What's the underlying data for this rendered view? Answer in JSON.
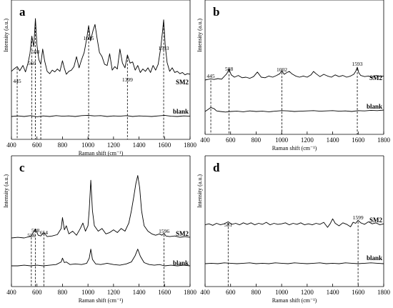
{
  "chart_data": [
    {
      "type": "line",
      "panel_letter": "a",
      "xlabel": "Raman shift (cm⁻¹)",
      "ylabel": "Intensity (a.u.)",
      "xlim": [
        400,
        1800
      ],
      "xticks": [
        400,
        600,
        800,
        1000,
        1200,
        1400,
        1600,
        1800
      ],
      "peak_labels": [
        445,
        560,
        588,
        1005,
        1309,
        1593
      ],
      "dashed_markers": [
        445,
        560,
        588,
        630,
        1005,
        1309,
        1593
      ],
      "series": [
        {
          "name": "SM2",
          "x": [
            400,
            420,
            445,
            465,
            490,
            510,
            530,
            545,
            560,
            575,
            588,
            600,
            615,
            630,
            645,
            660,
            680,
            700,
            720,
            740,
            760,
            780,
            800,
            815,
            830,
            850,
            870,
            890,
            910,
            930,
            950,
            970,
            990,
            1005,
            1020,
            1040,
            1055,
            1070,
            1090,
            1110,
            1130,
            1150,
            1170,
            1190,
            1210,
            1230,
            1250,
            1270,
            1290,
            1309,
            1330,
            1350,
            1370,
            1390,
            1410,
            1430,
            1450,
            1470,
            1490,
            1510,
            1530,
            1550,
            1570,
            1585,
            1593,
            1605,
            1620,
            1640,
            1660,
            1680,
            1700,
            1720,
            1740,
            1760,
            1780,
            1800
          ],
          "y": [
            0.1,
            0.14,
            0.18,
            0.11,
            0.2,
            0.09,
            0.24,
            0.4,
            0.7,
            0.52,
            1.0,
            0.55,
            0.3,
            0.22,
            0.48,
            0.28,
            0.1,
            0.06,
            0.12,
            0.09,
            0.14,
            0.1,
            0.28,
            0.15,
            0.05,
            0.1,
            0.12,
            0.18,
            0.35,
            0.16,
            0.3,
            0.42,
            0.66,
            0.88,
            0.62,
            0.8,
            0.9,
            0.68,
            0.42,
            0.35,
            0.22,
            0.2,
            0.4,
            0.12,
            0.18,
            0.14,
            0.48,
            0.24,
            0.16,
            0.38,
            0.24,
            0.26,
            0.12,
            0.2,
            0.08,
            0.14,
            0.1,
            0.16,
            0.08,
            0.2,
            0.12,
            0.22,
            0.5,
            0.8,
            0.98,
            0.55,
            0.25,
            0.1,
            0.16,
            0.08,
            0.1,
            0.06,
            0.08,
            0.04,
            0.06,
            0.05
          ]
        },
        {
          "name": "blank",
          "x": [
            400,
            450,
            500,
            550,
            600,
            650,
            700,
            750,
            800,
            850,
            900,
            950,
            1000,
            1050,
            1100,
            1150,
            1200,
            1250,
            1300,
            1350,
            1400,
            1450,
            1500,
            1550,
            1600,
            1650,
            1700,
            1750,
            1800
          ],
          "y": [
            0.0,
            0.02,
            0.0,
            0.03,
            -0.01,
            0.02,
            0.0,
            0.03,
            0.01,
            0.02,
            0.0,
            0.03,
            0.04,
            0.02,
            0.03,
            0.0,
            0.02,
            0.01,
            0.03,
            0.0,
            0.02,
            0.01,
            0.0,
            0.02,
            0.04,
            0.01,
            0.0,
            0.02,
            0.01
          ]
        }
      ]
    },
    {
      "type": "line",
      "panel_letter": "b",
      "xlabel": "Raman shift (cm⁻¹)",
      "ylabel": "Intensity (a.u.)",
      "xlim": [
        400,
        1800
      ],
      "xticks": [
        400,
        600,
        800,
        1000,
        1200,
        1400,
        1600,
        1800
      ],
      "peak_labels": [
        445,
        588,
        1002,
        1593
      ],
      "dashed_markers": [
        445,
        588,
        1002,
        1593
      ],
      "series": [
        {
          "name": "SM2",
          "x": [
            400,
            420,
            445,
            470,
            500,
            530,
            555,
            570,
            588,
            605,
            630,
            660,
            690,
            720,
            750,
            780,
            810,
            840,
            870,
            900,
            930,
            960,
            985,
            1002,
            1020,
            1040,
            1060,
            1080,
            1110,
            1140,
            1170,
            1200,
            1230,
            1250,
            1270,
            1300,
            1330,
            1360,
            1390,
            1420,
            1450,
            1480,
            1510,
            1540,
            1565,
            1580,
            1593,
            1605,
            1620,
            1650,
            1680,
            1710,
            1740,
            1770,
            1800
          ],
          "y": [
            0.0,
            0.02,
            0.04,
            0.02,
            0.05,
            0.03,
            0.15,
            0.22,
            0.38,
            0.18,
            0.1,
            0.16,
            0.08,
            0.1,
            0.06,
            0.12,
            0.28,
            0.1,
            0.08,
            0.14,
            0.1,
            0.16,
            0.22,
            0.32,
            0.2,
            0.26,
            0.3,
            0.22,
            0.14,
            0.1,
            0.14,
            0.1,
            0.18,
            0.3,
            0.22,
            0.12,
            0.2,
            0.14,
            0.1,
            0.18,
            0.12,
            0.16,
            0.1,
            0.14,
            0.2,
            0.3,
            0.45,
            0.25,
            0.16,
            0.12,
            0.14,
            0.1,
            0.16,
            0.12,
            0.14
          ]
        },
        {
          "name": "blank",
          "x": [
            400,
            420,
            445,
            470,
            490,
            520,
            560,
            600,
            650,
            700,
            750,
            800,
            850,
            900,
            950,
            1000,
            1050,
            1100,
            1150,
            1200,
            1250,
            1300,
            1350,
            1400,
            1450,
            1500,
            1550,
            1600,
            1650,
            1700,
            1750,
            1800
          ],
          "y": [
            0.0,
            0.06,
            0.14,
            0.1,
            0.02,
            0.0,
            -0.02,
            0.0,
            0.01,
            -0.01,
            0.02,
            0.0,
            0.01,
            -0.01,
            0.01,
            0.03,
            0.02,
            0.0,
            0.01,
            0.02,
            0.03,
            0.01,
            0.02,
            0.03,
            0.01,
            0.02,
            0.0,
            0.03,
            0.02,
            0.04,
            0.03,
            0.05
          ]
        }
      ]
    },
    {
      "type": "line",
      "panel_letter": "c",
      "xlabel": "Raman shift (cm⁻¹)",
      "ylabel": "Intensity (a.u.)",
      "xlim": [
        400,
        1800
      ],
      "xticks": [
        400,
        600,
        800,
        1000,
        1200,
        1400,
        1600,
        1800
      ],
      "peak_labels": [
        556,
        588,
        654,
        1596
      ],
      "dashed_markers": [
        556,
        588,
        654,
        1596
      ],
      "series": [
        {
          "name": "SM2",
          "x": [
            400,
            450,
            500,
            540,
            556,
            570,
            588,
            610,
            630,
            654,
            680,
            720,
            760,
            790,
            800,
            815,
            830,
            850,
            880,
            910,
            940,
            960,
            980,
            1000,
            1010,
            1022,
            1035,
            1050,
            1080,
            1110,
            1140,
            1170,
            1200,
            1230,
            1260,
            1290,
            1320,
            1340,
            1360,
            1375,
            1390,
            1405,
            1420,
            1440,
            1470,
            1500,
            1530,
            1560,
            1580,
            1596,
            1610,
            1640,
            1680,
            1720,
            1760,
            1800
          ],
          "y": [
            0.0,
            0.01,
            0.0,
            0.02,
            0.03,
            0.08,
            0.13,
            0.04,
            0.03,
            0.08,
            0.02,
            0.03,
            0.05,
            0.14,
            0.3,
            0.12,
            0.18,
            0.06,
            0.1,
            0.04,
            0.14,
            0.22,
            0.1,
            0.18,
            0.42,
            0.85,
            0.4,
            0.18,
            0.1,
            0.14,
            0.06,
            0.08,
            0.12,
            0.08,
            0.14,
            0.1,
            0.22,
            0.4,
            0.62,
            0.8,
            0.92,
            0.74,
            0.4,
            0.18,
            0.1,
            0.06,
            0.04,
            0.06,
            0.04,
            0.07,
            0.03,
            0.02,
            0.03,
            0.01,
            0.02,
            0.01
          ]
        },
        {
          "name": "blank",
          "x": [
            400,
            450,
            500,
            550,
            600,
            650,
            700,
            750,
            790,
            800,
            815,
            830,
            860,
            900,
            950,
            990,
            1010,
            1022,
            1035,
            1060,
            1100,
            1150,
            1200,
            1250,
            1300,
            1340,
            1370,
            1390,
            1410,
            1440,
            1480,
            1520,
            1560,
            1600,
            1650,
            1700,
            1750,
            1800
          ],
          "y": [
            0.0,
            0.0,
            0.01,
            0.0,
            0.01,
            0.0,
            0.01,
            0.02,
            0.06,
            0.12,
            0.05,
            0.06,
            0.02,
            0.03,
            0.02,
            0.04,
            0.12,
            0.26,
            0.1,
            0.03,
            0.02,
            0.04,
            0.02,
            0.01,
            0.03,
            0.06,
            0.16,
            0.26,
            0.15,
            0.05,
            0.02,
            0.01,
            0.02,
            0.0,
            0.01,
            0.0,
            0.01,
            0.0
          ]
        }
      ]
    },
    {
      "type": "line",
      "panel_letter": "d",
      "xlabel": "Raman shift (cm⁻¹)",
      "ylabel": "Intensity (a.u.)",
      "xlim": [
        400,
        1800
      ],
      "xticks": [
        400,
        600,
        800,
        1000,
        1200,
        1400,
        1600,
        1800
      ],
      "peak_labels": [
        581,
        1599
      ],
      "dashed_markers": [
        581,
        1599
      ],
      "series": [
        {
          "name": "SM2",
          "x": [
            400,
            430,
            460,
            490,
            520,
            550,
            581,
            610,
            640,
            670,
            700,
            730,
            760,
            790,
            820,
            850,
            880,
            910,
            940,
            970,
            1000,
            1030,
            1060,
            1090,
            1120,
            1150,
            1180,
            1210,
            1240,
            1270,
            1300,
            1330,
            1360,
            1380,
            1400,
            1420,
            1450,
            1480,
            1510,
            1540,
            1560,
            1580,
            1599,
            1620,
            1650,
            1680,
            1710,
            1740,
            1770,
            1800
          ],
          "y": [
            0.02,
            0.04,
            0.01,
            0.05,
            0.02,
            0.04,
            0.08,
            0.03,
            0.05,
            0.02,
            0.06,
            0.03,
            0.06,
            0.02,
            0.05,
            0.03,
            0.07,
            0.02,
            0.05,
            0.03,
            0.04,
            0.06,
            0.02,
            0.05,
            0.03,
            0.06,
            0.02,
            0.04,
            0.02,
            0.05,
            0.03,
            0.07,
            -0.03,
            0.04,
            0.14,
            0.05,
            0.0,
            0.06,
            0.03,
            -0.02,
            0.07,
            0.05,
            0.11,
            0.06,
            0.03,
            0.08,
            0.04,
            0.06,
            0.02,
            0.04
          ]
        },
        {
          "name": "blank",
          "x": [
            400,
            450,
            500,
            550,
            600,
            650,
            700,
            750,
            800,
            850,
            900,
            950,
            1000,
            1050,
            1100,
            1150,
            1200,
            1250,
            1300,
            1350,
            1400,
            1450,
            1500,
            1550,
            1600,
            1650,
            1700,
            1750,
            1800
          ],
          "y": [
            0.0,
            0.01,
            0.0,
            0.02,
            0.01,
            0.0,
            0.01,
            0.02,
            0.0,
            0.01,
            0.0,
            0.02,
            0.01,
            0.0,
            0.02,
            0.01,
            0.0,
            0.01,
            0.02,
            0.0,
            0.01,
            0.0,
            0.02,
            0.01,
            0.0,
            0.01,
            0.02,
            0.01,
            0.0
          ]
        }
      ]
    }
  ]
}
